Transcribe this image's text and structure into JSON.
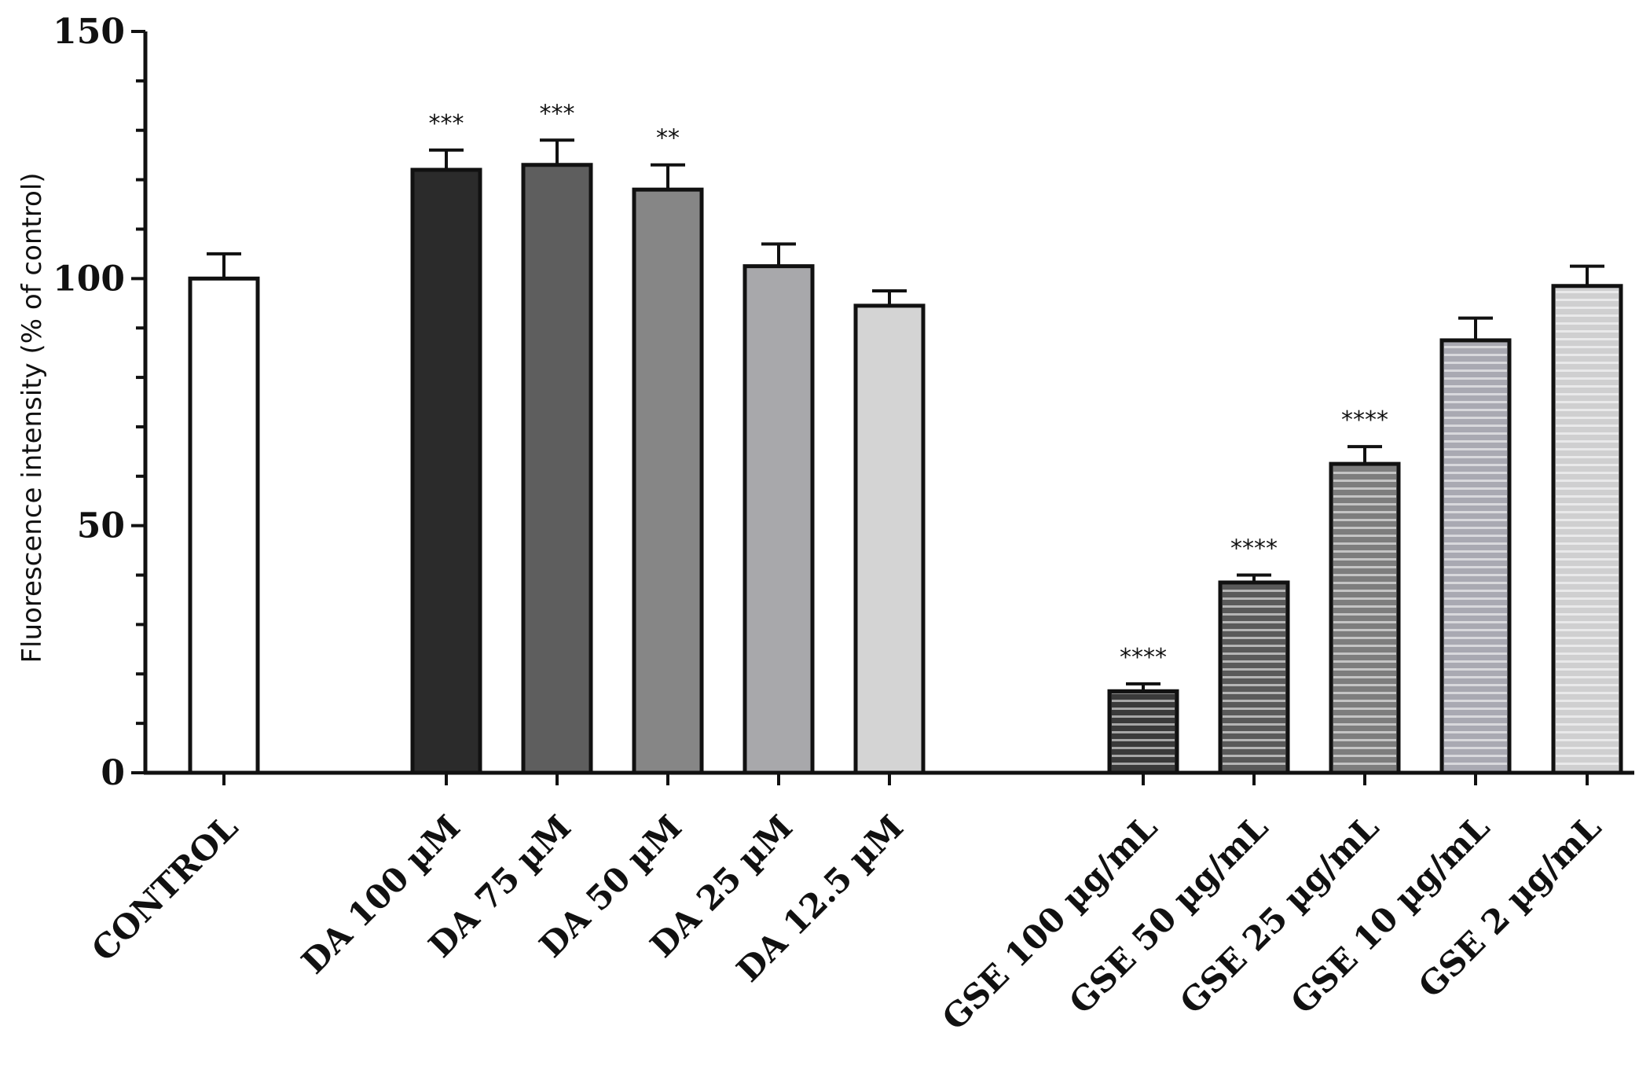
{
  "chart_data": {
    "type": "bar",
    "title": "",
    "xlabel": "",
    "ylabel": "Fluorescence intensity (% of control)",
    "ylim": [
      0,
      150
    ],
    "yticks": [
      0,
      50,
      100,
      150
    ],
    "grid": false,
    "categories": [
      "CONTROL",
      "DA 100 µM",
      "DA 75 µM",
      "DA 50 µM",
      "DA 25 µM",
      "DA 12.5 µM",
      "GSE 100 µg/mL",
      "GSE 50 µg/mL",
      "GSE 25 µg/mL",
      "GSE 10 µg/mL",
      "GSE 2 µg/mL"
    ],
    "values": [
      100,
      122,
      123,
      118,
      102.5,
      94.5,
      16.5,
      38.5,
      62.5,
      87.5,
      98.5
    ],
    "errors": [
      5,
      4,
      5,
      5,
      4.5,
      3,
      1.5,
      1.5,
      3.5,
      4.5,
      4
    ],
    "significance": [
      "",
      "***",
      "***",
      "**",
      "",
      "",
      "****",
      "****",
      "****",
      "",
      ""
    ],
    "fill_colors": [
      "#ffffff",
      "#2b2b2b",
      "#5e5e5e",
      "#868686",
      "#a8a8ab",
      "#d4d4d4",
      "#3a3a3a",
      "#5a5a5a",
      "#7d7d7d",
      "#a9a9b2",
      "#cfcfd0"
    ],
    "hatched": [
      false,
      false,
      false,
      false,
      false,
      false,
      true,
      true,
      true,
      true,
      true
    ],
    "group_gaps_after": [
      0,
      5
    ]
  }
}
